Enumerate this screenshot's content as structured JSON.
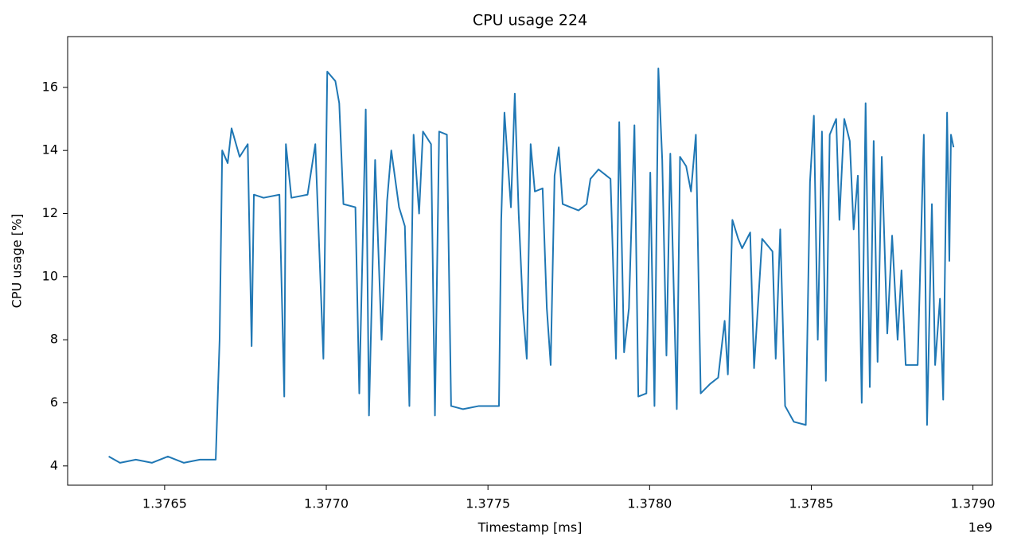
{
  "chart_data": {
    "type": "line",
    "title": "CPU usage 224",
    "x_label": "Timestamp [ms]",
    "y_label": "CPU usage [%]",
    "x_offset_label": "1e9",
    "xlim": [
      1.3762,
      1.37906
    ],
    "ylim": [
      3.39,
      17.61
    ],
    "xticks": [
      1.3765,
      {
        "value": 1.377,
        "label": "1.3770"
      },
      1.3775,
      {
        "value": 1.378,
        "label": "1.3780"
      },
      1.3785,
      {
        "value": 1.379,
        "label": "1.3790"
      }
    ],
    "yticks": [
      4,
      6,
      8,
      10,
      12,
      14,
      16
    ],
    "x": [
      1.376327,
      1.376362,
      1.376411,
      1.376461,
      1.37651,
      1.376559,
      1.376609,
      1.376658,
      1.37667,
      1.376678,
      1.376695,
      1.376707,
      1.376732,
      1.376757,
      1.376769,
      1.376776,
      1.376806,
      1.376855,
      1.37687,
      1.376875,
      1.376892,
      1.376942,
      1.376966,
      1.376991,
      1.377003,
      1.377028,
      1.37704,
      1.377053,
      1.37709,
      1.377102,
      1.377122,
      1.377132,
      1.377151,
      1.377171,
      1.377188,
      1.377201,
      1.377225,
      1.377243,
      1.377257,
      1.37727,
      1.377287,
      1.377299,
      1.377324,
      1.377336,
      1.377349,
      1.377373,
      1.377386,
      1.377423,
      1.377472,
      1.377534,
      1.377541,
      1.377551,
      1.377571,
      1.377583,
      1.377595,
      1.377608,
      1.37762,
      1.377632,
      1.377645,
      1.377669,
      1.377682,
      1.377694,
      1.377706,
      1.377719,
      1.377731,
      1.37778,
      1.377805,
      1.377817,
      1.377842,
      1.377879,
      1.377896,
      1.377906,
      1.377921,
      1.377936,
      1.377953,
      1.377965,
      1.37799,
      1.378002,
      1.378015,
      1.378027,
      1.378039,
      1.378052,
      1.378064,
      1.378084,
      1.378094,
      1.378113,
      1.378128,
      1.378143,
      1.378158,
      1.378187,
      1.378212,
      1.378232,
      1.378242,
      1.378256,
      1.378274,
      1.378286,
      1.378311,
      1.378323,
      1.378348,
      1.37838,
      1.37839,
      1.378404,
      1.378419,
      1.378446,
      1.378483,
      1.378496,
      1.378508,
      1.37852,
      1.378533,
      1.378545,
      1.378557,
      1.378577,
      1.378587,
      1.378602,
      1.378619,
      1.378631,
      1.378644,
      1.378656,
      1.378668,
      1.378681,
      1.378693,
      1.378705,
      1.378718,
      1.378735,
      1.37875,
      1.378767,
      1.378779,
      1.378792,
      1.378829,
      1.378848,
      1.378858,
      1.378873,
      1.378883,
      1.378898,
      1.378908,
      1.37892,
      1.378927,
      1.378932,
      1.37894
    ],
    "series": [
      {
        "name": "CPU usage",
        "color": "#1f77b4",
        "values": [
          4.3,
          4.1,
          4.2,
          4.1,
          4.3,
          4.1,
          4.2,
          4.2,
          8,
          14,
          13.6,
          14.7,
          13.8,
          14.2,
          7.8,
          12.6,
          12.5,
          12.6,
          6.2,
          14.2,
          12.5,
          12.6,
          14.2,
          7.4,
          16.5,
          16.2,
          15.5,
          12.3,
          12.2,
          6.3,
          15.3,
          5.6,
          13.7,
          8,
          12.4,
          14,
          12.2,
          11.6,
          5.9,
          14.5,
          12,
          14.6,
          14.2,
          5.6,
          14.6,
          14.5,
          5.9,
          5.8,
          5.9,
          5.9,
          11.8,
          15.2,
          12.2,
          15.8,
          12,
          9,
          7.4,
          14.2,
          12.7,
          12.8,
          9,
          7.2,
          13.2,
          14.1,
          12.3,
          12.1,
          12.3,
          13.1,
          13.4,
          13.1,
          7.4,
          14.9,
          7.6,
          9,
          14.8,
          6.2,
          6.3,
          13.3,
          5.9,
          16.6,
          13.7,
          7.5,
          13.9,
          5.8,
          13.8,
          13.5,
          12.7,
          14.5,
          6.3,
          6.6,
          6.8,
          8.6,
          6.9,
          11.8,
          11.2,
          10.9,
          11.4,
          7.1,
          11.2,
          10.8,
          7.4,
          11.5,
          5.9,
          5.4,
          5.3,
          13,
          15.1,
          8,
          14.6,
          6.7,
          14.5,
          15,
          11.8,
          15,
          14.3,
          11.5,
          13.2,
          6,
          15.5,
          6.5,
          14.3,
          7.3,
          13.8,
          8.2,
          11.3,
          8,
          10.2,
          7.2,
          7.2,
          14.5,
          5.3,
          12.3,
          7.2,
          9.3,
          6.1,
          15.2,
          10.5,
          14.5,
          14.1
        ]
      }
    ]
  }
}
